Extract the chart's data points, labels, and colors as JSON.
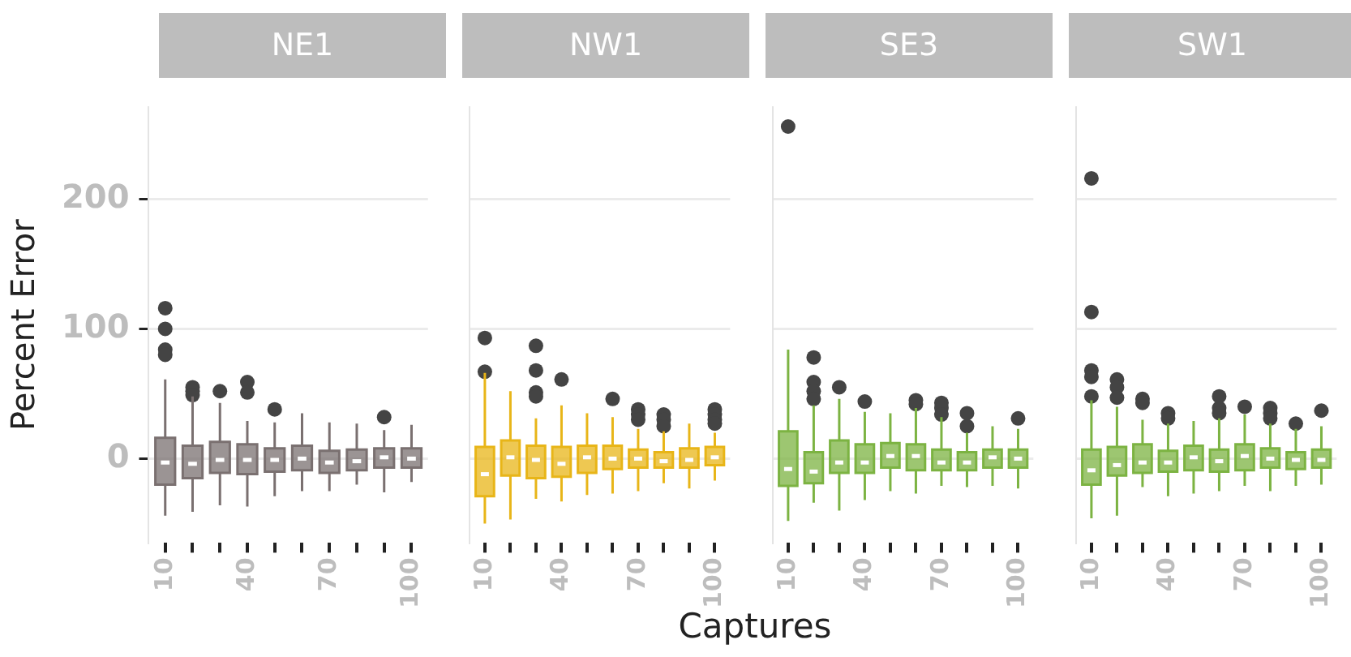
{
  "chart_data": [
    {
      "type": "box",
      "title": "NE1",
      "ylabel": "Percent Error",
      "categories": [
        "10",
        null,
        null,
        "40",
        null,
        null,
        "70",
        null,
        null,
        "100"
      ],
      "ylim": [
        -65,
        271
      ],
      "yticks": [
        0,
        100,
        200
      ],
      "grid": "y",
      "series": [
        {
          "color": "#7a7070",
          "boxes": [
            {
              "low": -44,
              "q1": -20,
              "median": -3,
              "q3": 16,
              "high": 61,
              "outliers": [
                116,
                100,
                84,
                80
              ]
            },
            {
              "low": -41,
              "q1": -15,
              "median": -4,
              "q3": 10,
              "high": 48,
              "outliers": [
                55,
                52,
                49
              ]
            },
            {
              "low": -36,
              "q1": -11,
              "median": -1,
              "q3": 13,
              "high": 43,
              "outliers": [
                52
              ]
            },
            {
              "low": -37,
              "q1": -12,
              "median": -1,
              "q3": 11,
              "high": 29,
              "outliers": [
                59,
                51
              ]
            },
            {
              "low": -29,
              "q1": -10,
              "median": -1,
              "q3": 8,
              "high": 28,
              "outliers": [
                38
              ]
            },
            {
              "low": -25,
              "q1": -9,
              "median": 0,
              "q3": 10,
              "high": 35
            },
            {
              "low": -25,
              "q1": -11,
              "median": -3,
              "q3": 6,
              "high": 28
            },
            {
              "low": -20,
              "q1": -9,
              "median": -2,
              "q3": 7,
              "high": 27
            },
            {
              "low": -26,
              "q1": -7,
              "median": 1,
              "q3": 8,
              "high": 22,
              "outliers": [
                32
              ]
            },
            {
              "low": -18,
              "q1": -7,
              "median": 0,
              "q3": 8,
              "high": 26
            }
          ]
        }
      ]
    },
    {
      "type": "box",
      "title": "NW1",
      "xlabel": "Captures",
      "categories": [
        "10",
        null,
        null,
        "40",
        null,
        null,
        "70",
        null,
        null,
        "100"
      ],
      "ylim": [
        -65,
        271
      ],
      "yticks": [
        0,
        100,
        200
      ],
      "grid": "y",
      "tick_labels": "x",
      "series": [
        {
          "color": "#e8b518",
          "boxes": [
            {
              "low": -50,
              "q1": -29,
              "median": -12,
              "q3": 9,
              "high": 66,
              "outliers": [
                93,
                67
              ]
            },
            {
              "low": -47,
              "q1": -13,
              "median": 1,
              "q3": 14,
              "high": 52
            },
            {
              "low": -31,
              "q1": -15,
              "median": -1,
              "q3": 10,
              "high": 31,
              "outliers": [
                87,
                68,
                51,
                48
              ]
            },
            {
              "low": -33,
              "q1": -14,
              "median": -4,
              "q3": 9,
              "high": 41,
              "outliers": [
                61
              ]
            },
            {
              "low": -28,
              "q1": -11,
              "median": 1,
              "q3": 10,
              "high": 35
            },
            {
              "low": -27,
              "q1": -8,
              "median": 0,
              "q3": 10,
              "high": 32,
              "outliers": [
                46
              ]
            },
            {
              "low": -25,
              "q1": -7,
              "median": 0,
              "q3": 7,
              "high": 23,
              "outliers": [
                38,
                34,
                30
              ]
            },
            {
              "low": -19,
              "q1": -7,
              "median": -2,
              "q3": 5,
              "high": 21,
              "outliers": [
                34,
                30,
                25
              ]
            },
            {
              "low": -23,
              "q1": -7,
              "median": -1,
              "q3": 8,
              "high": 27
            },
            {
              "low": -17,
              "q1": -5,
              "median": 1,
              "q3": 9,
              "high": 20,
              "outliers": [
                38,
                34,
                30,
                27
              ]
            }
          ]
        }
      ]
    },
    {
      "type": "box",
      "title": "SE3",
      "categories": [
        "10",
        null,
        null,
        "40",
        null,
        null,
        "70",
        null,
        null,
        "100"
      ],
      "ylim": [
        -65,
        271
      ],
      "yticks": [
        0,
        100,
        200
      ],
      "grid": "y",
      "tick_labels": "x",
      "series": [
        {
          "color": "#7cb342",
          "boxes": [
            {
              "low": -48,
              "q1": -21,
              "median": -8,
              "q3": 21,
              "high": 84,
              "outliers": [
                256
              ]
            },
            {
              "low": -34,
              "q1": -19,
              "median": -10,
              "q3": 5,
              "high": 41,
              "outliers": [
                78,
                59,
                52,
                46
              ]
            },
            {
              "low": -40,
              "q1": -11,
              "median": -3,
              "q3": 14,
              "high": 46,
              "outliers": [
                55
              ]
            },
            {
              "low": -32,
              "q1": -11,
              "median": -3,
              "q3": 11,
              "high": 36,
              "outliers": [
                44
              ]
            },
            {
              "low": -25,
              "q1": -7,
              "median": 2,
              "q3": 12,
              "high": 35
            },
            {
              "low": -27,
              "q1": -9,
              "median": 2,
              "q3": 11,
              "high": 39,
              "outliers": [
                45,
                42
              ]
            },
            {
              "low": -21,
              "q1": -9,
              "median": -3,
              "q3": 7,
              "high": 32,
              "outliers": [
                43,
                39,
                34
              ]
            },
            {
              "low": -22,
              "q1": -9,
              "median": -3,
              "q3": 5,
              "high": 20,
              "outliers": [
                35,
                25
              ]
            },
            {
              "low": -21,
              "q1": -7,
              "median": 1,
              "q3": 7,
              "high": 25
            },
            {
              "low": -23,
              "q1": -7,
              "median": 0,
              "q3": 7,
              "high": 23,
              "outliers": [
                31
              ]
            }
          ]
        }
      ]
    },
    {
      "type": "box",
      "title": "SW1",
      "categories": [
        "10",
        null,
        null,
        "40",
        null,
        null,
        "70",
        null,
        null,
        "100"
      ],
      "ylim": [
        -65,
        271
      ],
      "yticks": [
        0,
        100,
        200
      ],
      "grid": "y",
      "tick_labels": "x",
      "series": [
        {
          "color": "#7cb342",
          "boxes": [
            {
              "low": -46,
              "q1": -20,
              "median": -9,
              "q3": 7,
              "high": 45,
              "outliers": [
                216,
                113,
                68,
                63,
                48
              ]
            },
            {
              "low": -44,
              "q1": -13,
              "median": -5,
              "q3": 9,
              "high": 40,
              "outliers": [
                61,
                55,
                47
              ]
            },
            {
              "low": -22,
              "q1": -11,
              "median": -3,
              "q3": 11,
              "high": 30,
              "outliers": [
                46,
                43
              ]
            },
            {
              "low": -29,
              "q1": -10,
              "median": -3,
              "q3": 6,
              "high": 27,
              "outliers": [
                35,
                31
              ]
            },
            {
              "low": -27,
              "q1": -9,
              "median": 1,
              "q3": 10,
              "high": 29
            },
            {
              "low": -25,
              "q1": -10,
              "median": -2,
              "q3": 7,
              "high": 31,
              "outliers": [
                48,
                39,
                35
              ]
            },
            {
              "low": -21,
              "q1": -9,
              "median": 2,
              "q3": 11,
              "high": 34,
              "outliers": [
                40
              ]
            },
            {
              "low": -25,
              "q1": -7,
              "median": 0,
              "q3": 8,
              "high": 27,
              "outliers": [
                39,
                35,
                31
              ]
            },
            {
              "low": -21,
              "q1": -8,
              "median": -1,
              "q3": 5,
              "high": 23,
              "outliers": [
                27
              ]
            },
            {
              "low": -20,
              "q1": -7,
              "median": -1,
              "q3": 7,
              "high": 25,
              "outliers": [
                37
              ]
            }
          ]
        }
      ]
    }
  ]
}
